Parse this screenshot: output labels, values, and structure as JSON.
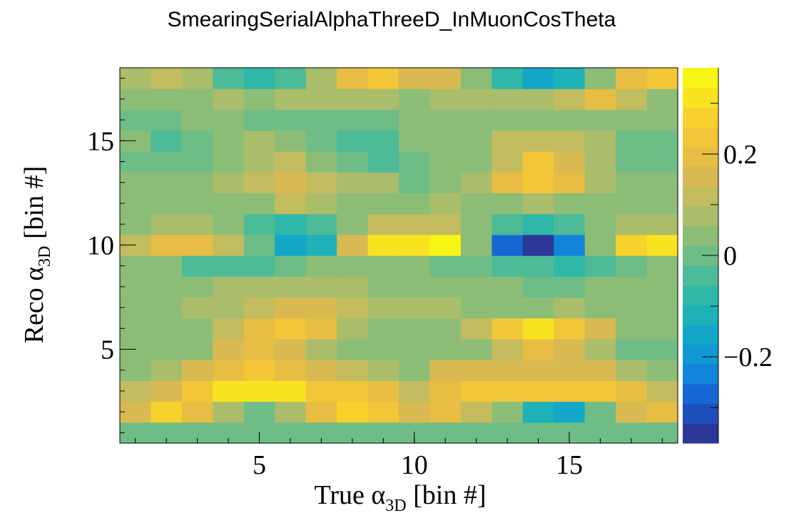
{
  "chart_data": {
    "type": "heatmap",
    "title": "SmearingSerialAlphaThreeD_InMuonCosTheta",
    "xlabel": {
      "pre": "True α",
      "sub": "3D",
      "post": " [bin #]"
    },
    "ylabel": {
      "pre": "Reco α",
      "sub": "3D",
      "post": " [bin #]"
    },
    "xlim": [
      0.5,
      18.5
    ],
    "ylim": [
      0.5,
      18.5
    ],
    "x_ticks": [
      {
        "v": 5,
        "label": "5"
      },
      {
        "v": 10,
        "label": "10"
      },
      {
        "v": 15,
        "label": "15"
      }
    ],
    "y_ticks": [
      {
        "v": 5,
        "label": "5"
      },
      {
        "v": 10,
        "label": "10"
      },
      {
        "v": 15,
        "label": "15"
      }
    ],
    "zlim": [
      -0.37,
      0.37
    ],
    "z_ticks": [
      {
        "v": -0.2,
        "label": "−0.2"
      },
      {
        "v": 0,
        "label": "0"
      },
      {
        "v": 0.2,
        "label": "0.2"
      }
    ],
    "colormap": [
      "#2c3798",
      "#1f4fbd",
      "#1667d4",
      "#1183da",
      "#0f98d1",
      "#13a7c7",
      "#1eb1b8",
      "#2fb8a7",
      "#4dbb97",
      "#6ebc86",
      "#8cbd77",
      "#a9bd6b",
      "#c2bc5e",
      "#d8b952",
      "#e7bd43",
      "#f2c637",
      "#f8d22c",
      "#f9e321",
      "#f8f515"
    ],
    "values": [
      [
        0.01,
        0.01,
        0.01,
        0.01,
        0.01,
        0.01,
        0.01,
        0.01,
        0.01,
        0.01,
        0.01,
        0.01,
        0.01,
        0.01,
        0.01,
        0.01,
        0.01,
        0.01
      ],
      [
        0.15,
        0.26,
        0.2,
        0.07,
        0.01,
        0.06,
        0.2,
        0.27,
        0.23,
        0.16,
        0.19,
        0.11,
        0.04,
        -0.12,
        -0.17,
        0.01,
        0.15,
        0.18
      ],
      [
        0.1,
        0.15,
        0.24,
        0.3,
        0.3,
        0.3,
        0.25,
        0.22,
        0.18,
        0.1,
        0.2,
        0.22,
        0.22,
        0.22,
        0.22,
        0.22,
        0.2,
        0.12
      ],
      [
        0.05,
        0.08,
        0.14,
        0.18,
        0.22,
        0.2,
        0.15,
        0.11,
        0.08,
        0.05,
        0.14,
        0.14,
        0.15,
        0.15,
        0.17,
        0.14,
        0.07,
        0.03
      ],
      [
        0.02,
        0.02,
        0.05,
        0.14,
        0.2,
        0.17,
        0.06,
        0.02,
        0.02,
        0.02,
        0.02,
        0.04,
        0.1,
        0.18,
        0.14,
        0.07,
        0.01,
        0.01
      ],
      [
        0.02,
        0.04,
        0.05,
        0.12,
        0.2,
        0.23,
        0.18,
        0.06,
        0.02,
        0.02,
        0.02,
        0.12,
        0.24,
        0.3,
        0.24,
        0.14,
        0.05,
        0.04
      ],
      [
        0.04,
        0.04,
        0.06,
        0.08,
        0.11,
        0.15,
        0.17,
        0.13,
        0.09,
        0.06,
        0.06,
        0.04,
        0.04,
        0.05,
        0.06,
        0.05,
        0.04,
        0.05
      ],
      [
        0.05,
        0.05,
        0.05,
        0.06,
        0.06,
        0.06,
        0.08,
        0.08,
        0.05,
        0.05,
        0.05,
        0.05,
        0.04,
        0.01,
        0.01,
        0.04,
        0.04,
        0.05
      ],
      [
        0.04,
        0.04,
        -0.02,
        -0.04,
        -0.04,
        0.0,
        0.04,
        0.05,
        0.04,
        0.04,
        -0.01,
        -0.01,
        -0.04,
        -0.04,
        -0.08,
        -0.04,
        -0.01,
        0.04
      ],
      [
        0.13,
        0.2,
        0.2,
        0.13,
        0.01,
        -0.17,
        -0.1,
        0.16,
        0.33,
        0.3,
        0.37,
        0.05,
        -0.27,
        -0.37,
        -0.24,
        0.05,
        0.28,
        0.3
      ],
      [
        0.04,
        0.08,
        0.08,
        0.05,
        -0.02,
        -0.06,
        -0.02,
        0.04,
        0.1,
        0.12,
        0.1,
        0.04,
        -0.03,
        -0.06,
        -0.03,
        0.04,
        0.07,
        0.06
      ],
      [
        0.03,
        0.03,
        0.03,
        0.05,
        0.04,
        0.1,
        0.07,
        0.05,
        0.05,
        0.05,
        0.08,
        0.04,
        0.05,
        0.06,
        0.05,
        0.04,
        0.05,
        0.03
      ],
      [
        0.05,
        0.04,
        0.05,
        0.06,
        0.12,
        0.15,
        0.1,
        0.06,
        0.06,
        0.0,
        0.02,
        0.09,
        0.18,
        0.22,
        0.18,
        0.07,
        0.03,
        0.03
      ],
      [
        0.01,
        0.01,
        0.01,
        0.04,
        0.07,
        0.11,
        0.04,
        0.0,
        -0.02,
        0.01,
        0.02,
        0.04,
        0.13,
        0.22,
        0.16,
        0.07,
        0.0,
        0.0
      ],
      [
        0.03,
        -0.04,
        0.01,
        0.03,
        0.08,
        0.04,
        0.01,
        -0.03,
        -0.03,
        0.04,
        0.04,
        0.04,
        0.1,
        0.11,
        0.11,
        0.07,
        0.01,
        0.01
      ],
      [
        0.0,
        0.0,
        0.04,
        0.04,
        0.0,
        0.0,
        0.0,
        0.0,
        0.0,
        0.04,
        0.04,
        0.04,
        0.04,
        0.04,
        0.04,
        0.04,
        0.04,
        0.02
      ],
      [
        0.05,
        0.05,
        0.05,
        0.07,
        0.04,
        0.07,
        0.07,
        0.07,
        0.07,
        0.05,
        0.07,
        0.08,
        0.08,
        0.08,
        0.12,
        0.18,
        0.13,
        0.05
      ],
      [
        0.07,
        0.12,
        0.07,
        -0.04,
        -0.07,
        -0.04,
        0.06,
        0.2,
        0.22,
        0.15,
        0.15,
        0.05,
        -0.07,
        -0.17,
        -0.13,
        0.02,
        0.18,
        0.25
      ]
    ]
  }
}
